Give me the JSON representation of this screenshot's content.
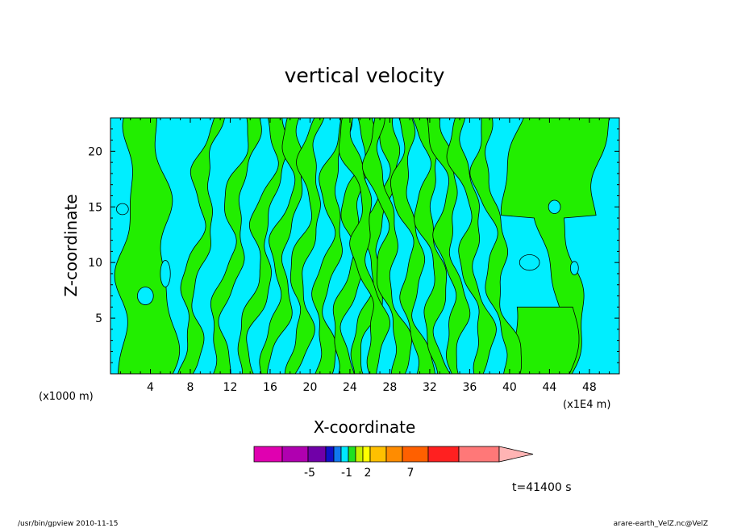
{
  "chart_data": {
    "type": "heatmap",
    "title": "vertical velocity",
    "xlabel": "X-coordinate",
    "ylabel": "Z-coordinate",
    "x_unit": "(x1000 m)",
    "x_unit_right": "(x1E4 m)",
    "xticks": [
      4,
      8,
      12,
      16,
      20,
      24,
      28,
      32,
      36,
      40,
      44,
      48
    ],
    "yticks": [
      5,
      10,
      15,
      20
    ],
    "xlim": [
      0,
      51
    ],
    "ylim": [
      0,
      23
    ],
    "colorbar": {
      "colors": [
        "#e000b0",
        "#b000b0",
        "#7000a8",
        "#1010c8",
        "#1078f0",
        "#00e8ff",
        "#20e020",
        "#c8f000",
        "#ffff00",
        "#ffc000",
        "#ff8c00",
        "#ff6000",
        "#ff2020",
        "#ff7878",
        "#ffb4b4"
      ],
      "labels": [
        "-5",
        "-1",
        "2",
        "7"
      ],
      "label_positions": [
        -5,
        -1,
        2,
        7
      ]
    },
    "field_colors": {
      "negative": "#00eeff",
      "positive": "#22ee00",
      "contour": "#000000"
    },
    "time_label": "t=41400 s",
    "footer_left": "/usr/bin/gpview   2010-11-15",
    "footer_right": "arare-earth_VelZ.nc@VelZ"
  }
}
